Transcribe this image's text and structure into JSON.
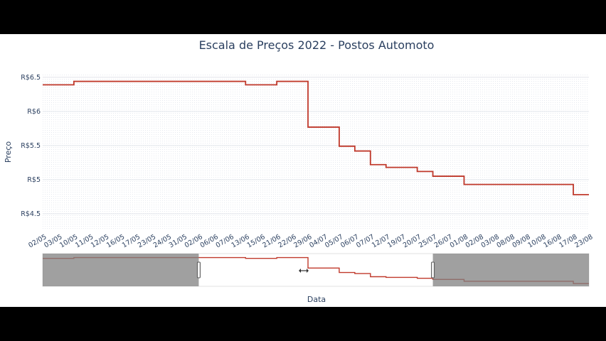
{
  "chart_data": {
    "type": "line",
    "title": "Escala de Preços 2022 - Postos Automoto",
    "xlabel": "Data",
    "ylabel": "Preço",
    "y_tick_labels": [
      "R$4.5",
      "R$5",
      "R$5.5",
      "R$6",
      "R$6.5"
    ],
    "y_tick_values": [
      4.5,
      5.0,
      5.5,
      6.0,
      6.5
    ],
    "ylim": [
      4.27,
      6.55
    ],
    "grid": true,
    "line_color": "#c0392b",
    "x_tick_labels": [
      "02/05",
      "03/05",
      "10/05",
      "11/05",
      "12/05",
      "16/05",
      "17/05",
      "23/05",
      "24/05",
      "31/05",
      "02/06",
      "06/06",
      "07/06",
      "13/06",
      "15/06",
      "21/06",
      "22/06",
      "29/06",
      "04/07",
      "05/07",
      "06/07",
      "07/07",
      "12/07",
      "19/07",
      "20/07",
      "25/07",
      "26/07",
      "01/08",
      "02/08",
      "03/08",
      "08/08",
      "09/08",
      "10/08",
      "16/08",
      "17/08",
      "23/08"
    ],
    "x": [
      "02/05",
      "03/05",
      "10/05",
      "11/05",
      "12/05",
      "16/05",
      "17/05",
      "23/05",
      "24/05",
      "31/05",
      "02/06",
      "06/06",
      "07/06",
      "13/06",
      "15/06",
      "21/06",
      "22/06",
      "29/06",
      "04/07",
      "05/07",
      "06/07",
      "07/07",
      "12/07",
      "19/07",
      "20/07",
      "25/07",
      "26/07",
      "01/08",
      "02/08",
      "03/08",
      "08/08",
      "09/08",
      "10/08",
      "16/08",
      "17/08",
      "23/08"
    ],
    "y": [
      6.39,
      6.39,
      6.44,
      6.44,
      6.44,
      6.44,
      6.44,
      6.44,
      6.44,
      6.44,
      6.44,
      6.44,
      6.44,
      6.39,
      6.39,
      6.44,
      6.44,
      5.77,
      5.77,
      5.49,
      5.42,
      5.22,
      5.18,
      5.18,
      5.12,
      5.05,
      5.05,
      4.93,
      4.93,
      4.93,
      4.93,
      4.93,
      4.93,
      4.93,
      4.78,
      4.78
    ],
    "rangeslider": {
      "visible": true,
      "selected_range": [
        "02/06",
        "25/07"
      ],
      "unselected_color": "#808080"
    }
  }
}
